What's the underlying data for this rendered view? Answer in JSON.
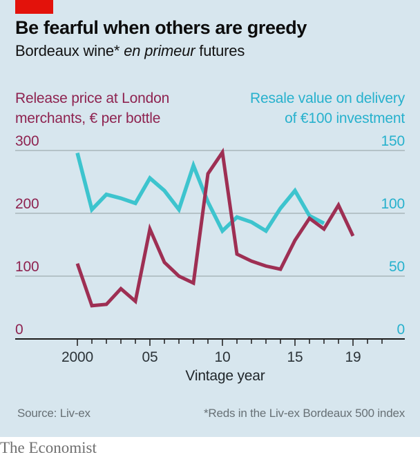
{
  "header": {
    "title": "Be fearful when others are greedy",
    "subtitle_prefix": "Bordeaux wine* ",
    "subtitle_italic": "en primeur",
    "subtitle_suffix": " futures"
  },
  "legend": {
    "left_line1": "Release price at London",
    "left_line2": "merchants, € per bottle",
    "right_line1": "Resale value on delivery",
    "right_line2": "of €100 investment"
  },
  "footer": {
    "source": "Source: Liv-ex",
    "footnote": "*Reds in the Liv-ex Bordeaux 500 index",
    "brand": "The Economist"
  },
  "colors": {
    "accent_red": "#e3120b",
    "line_red": "#9e2f53",
    "line_cyan": "#3dc4ce",
    "text_red": "#8e2350",
    "text_cyan": "#27b1cd",
    "grid": "#a9b6ba",
    "axis": "#1a1a1a",
    "x_label": "#2b3338",
    "card_bg": "#d7e6ee"
  },
  "chart_data": {
    "type": "line",
    "title": "Be fearful when others are greedy",
    "subtitle": "Bordeaux wine* en primeur futures",
    "x": [
      2000,
      2001,
      2002,
      2003,
      2004,
      2005,
      2006,
      2007,
      2008,
      2009,
      2010,
      2011,
      2012,
      2013,
      2014,
      2015,
      2016,
      2017,
      2018,
      2019
    ],
    "series": [
      {
        "name": "Release price at London merchants, € per bottle",
        "axis": "left",
        "color": "#9e2f53",
        "values": [
          120,
          53,
          55,
          80,
          60,
          175,
          122,
          100,
          89,
          263,
          297,
          135,
          124,
          116,
          111,
          157,
          192,
          175,
          213,
          164
        ]
      },
      {
        "name": "Resale value on delivery of €100 investment",
        "axis": "right",
        "color": "#3dc4ce",
        "values": [
          148,
          103,
          115,
          112,
          108,
          128,
          118,
          103,
          138,
          109,
          86,
          97,
          93,
          86,
          104,
          118,
          98,
          92,
          null,
          null
        ]
      }
    ],
    "left_axis": {
      "ticks": [
        0,
        100,
        200,
        300
      ],
      "lim": [
        0,
        300
      ]
    },
    "right_axis": {
      "ticks": [
        0,
        50,
        100,
        150
      ],
      "lim": [
        0,
        150
      ]
    },
    "x_axis": {
      "title": "Vintage year",
      "labeled_ticks": [
        {
          "year": 2000,
          "label": "2000"
        },
        {
          "year": 2005,
          "label": "05"
        },
        {
          "year": 2010,
          "label": "10"
        },
        {
          "year": 2015,
          "label": "15"
        },
        {
          "year": 2019,
          "label": "19"
        }
      ],
      "minor_tick_range": [
        2000,
        2021
      ]
    },
    "grid": true,
    "legend_position": "top"
  }
}
